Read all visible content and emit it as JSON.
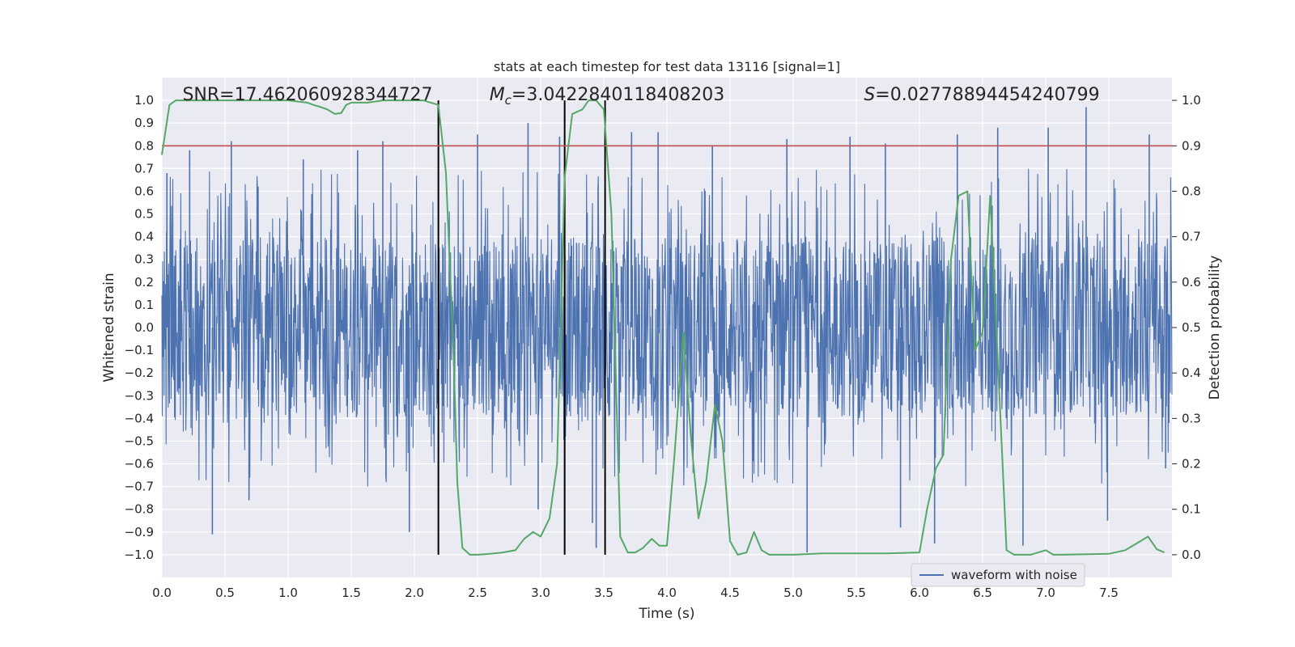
{
  "chart_data": {
    "type": "line",
    "title": "stats at each timestep for test data 13116 [signal=1]",
    "xlabel": "Time (s)",
    "ylabel": "Whitened strain",
    "y2label": "Detection probability",
    "xlim": [
      0,
      8
    ],
    "ylim": [
      -1.1,
      1.1
    ],
    "y2lim": [
      -0.05,
      1.05
    ],
    "x_ticks": [
      0.0,
      0.5,
      1.0,
      1.5,
      2.0,
      2.5,
      3.0,
      3.5,
      4.0,
      4.5,
      5.0,
      5.5,
      6.0,
      6.5,
      7.0,
      7.5
    ],
    "x_tick_labels": [
      "0.0",
      "0.5",
      "1.0",
      "1.5",
      "2.0",
      "2.5",
      "3.0",
      "3.5",
      "4.0",
      "4.5",
      "5.0",
      "5.5",
      "6.0",
      "6.5",
      "7.0",
      "7.5"
    ],
    "y_ticks": [
      1.0,
      0.9,
      0.8,
      0.7,
      0.6,
      0.5,
      0.4,
      0.3,
      0.2,
      0.1,
      0.0,
      -0.1,
      -0.2,
      -0.3,
      -0.4,
      -0.5,
      -0.6,
      -0.7,
      -0.8,
      -0.9,
      -1.0
    ],
    "y_tick_labels": [
      "1.0",
      "0.9",
      "0.8",
      "0.7",
      "0.6",
      "0.5",
      "0.4",
      "0.3",
      "0.2",
      "0.1",
      "0.0",
      "−0.1",
      "−0.2",
      "−0.3",
      "−0.4",
      "−0.5",
      "−0.6",
      "−0.7",
      "−0.8",
      "−0.9",
      "−1.0"
    ],
    "y2_ticks": [
      1.0,
      0.9,
      0.8,
      0.7,
      0.6,
      0.5,
      0.4,
      0.3,
      0.2,
      0.1,
      0.0
    ],
    "y2_tick_labels": [
      "1.0",
      "0.9",
      "0.8",
      "0.7",
      "0.6",
      "0.5",
      "0.4",
      "0.3",
      "0.2",
      "0.1",
      "0.0"
    ],
    "grid": true,
    "annotations": [
      {
        "text": "SNR=17.462060928344727",
        "x": 1.1
      },
      {
        "mc_prefix": "M",
        "mc_sub": "c",
        "mc_rest": "=3.0422840118408203",
        "x": 3.0
      },
      {
        "s_prefix": "S",
        "s_rest": "=0.02778894454240799",
        "x": 6.4
      }
    ],
    "threshold_line": {
      "y2": 0.9,
      "color": "#c44e52"
    },
    "vertical_lines": [
      2.19,
      3.19,
      3.51
    ],
    "series": [
      {
        "name": "waveform with noise",
        "color": "#4c72b0",
        "axis": "left",
        "description": "whitened strain time series, dense noise",
        "bulk_amplitude": 0.4,
        "peaks": [
          {
            "x": 0.04,
            "y": 0.68
          },
          {
            "x": 0.22,
            "y": 0.78
          },
          {
            "x": 0.55,
            "y": 0.82
          },
          {
            "x": 1.12,
            "y": 0.74
          },
          {
            "x": 1.55,
            "y": 0.78
          },
          {
            "x": 1.75,
            "y": 0.82
          },
          {
            "x": 2.5,
            "y": 0.85
          },
          {
            "x": 2.9,
            "y": 0.9
          },
          {
            "x": 3.15,
            "y": 0.84
          },
          {
            "x": 3.72,
            "y": 0.86
          },
          {
            "x": 3.93,
            "y": 0.86
          },
          {
            "x": 4.36,
            "y": 0.8
          },
          {
            "x": 4.95,
            "y": 0.83
          },
          {
            "x": 5.45,
            "y": 0.84
          },
          {
            "x": 5.73,
            "y": 0.81
          },
          {
            "x": 6.3,
            "y": 0.85
          },
          {
            "x": 6.62,
            "y": 0.88
          },
          {
            "x": 7.02,
            "y": 0.88
          },
          {
            "x": 7.32,
            "y": 0.97
          },
          {
            "x": 7.82,
            "y": 0.85
          },
          {
            "x": 0.4,
            "y": -0.91
          },
          {
            "x": 0.69,
            "y": -0.76
          },
          {
            "x": 1.96,
            "y": -0.9
          },
          {
            "x": 2.98,
            "y": -0.8
          },
          {
            "x": 3.41,
            "y": -0.86
          },
          {
            "x": 3.44,
            "y": -0.97
          },
          {
            "x": 5.11,
            "y": -0.99
          },
          {
            "x": 5.85,
            "y": -0.88
          },
          {
            "x": 6.12,
            "y": -0.95
          },
          {
            "x": 6.82,
            "y": -0.96
          },
          {
            "x": 7.49,
            "y": -0.85
          },
          {
            "x": 7.95,
            "y": -0.62
          }
        ]
      },
      {
        "name": "detection probability",
        "color": "#55a868",
        "axis": "right",
        "x": [
          0.0,
          0.06,
          0.11,
          0.25,
          0.5,
          0.75,
          1.0,
          1.15,
          1.2,
          1.26,
          1.31,
          1.37,
          1.42,
          1.46,
          1.5,
          1.63,
          1.75,
          1.88,
          2.0,
          2.07,
          2.13,
          2.19,
          2.25,
          2.31,
          2.34,
          2.38,
          2.44,
          2.5,
          2.6,
          2.7,
          2.8,
          2.87,
          2.94,
          3.0,
          3.07,
          3.13,
          3.19,
          3.25,
          3.33,
          3.38,
          3.44,
          3.5,
          3.56,
          3.63,
          3.69,
          3.75,
          3.81,
          3.88,
          3.94,
          4.0,
          4.06,
          4.13,
          4.19,
          4.25,
          4.31,
          4.38,
          4.44,
          4.5,
          4.56,
          4.63,
          4.69,
          4.75,
          4.81,
          5.0,
          5.25,
          5.5,
          5.75,
          6.0,
          6.06,
          6.13,
          6.19,
          6.25,
          6.31,
          6.38,
          6.44,
          6.5,
          6.56,
          6.63,
          6.69,
          6.75,
          6.81,
          6.88,
          7.0,
          7.06,
          7.13,
          7.5,
          7.63,
          7.75,
          7.81,
          7.88,
          7.94
        ],
        "y": [
          0.88,
          0.99,
          1.0,
          1.0,
          1.0,
          1.0,
          1.0,
          0.995,
          0.99,
          0.985,
          0.98,
          0.97,
          0.972,
          0.99,
          0.995,
          0.995,
          1.0,
          1.0,
          1.0,
          1.0,
          0.995,
          0.99,
          0.84,
          0.44,
          0.16,
          0.015,
          0.0,
          0.0,
          0.002,
          0.005,
          0.01,
          0.035,
          0.05,
          0.04,
          0.08,
          0.2,
          0.83,
          0.97,
          0.98,
          1.0,
          1.0,
          0.98,
          0.75,
          0.04,
          0.005,
          0.005,
          0.015,
          0.035,
          0.02,
          0.02,
          0.22,
          0.49,
          0.26,
          0.08,
          0.16,
          0.33,
          0.25,
          0.03,
          0.0,
          0.005,
          0.05,
          0.01,
          0.0,
          0.0,
          0.003,
          0.003,
          0.003,
          0.005,
          0.1,
          0.19,
          0.22,
          0.65,
          0.79,
          0.8,
          0.45,
          0.49,
          0.79,
          0.37,
          0.01,
          0.0,
          0.0,
          0.0,
          0.01,
          0.0,
          0.0,
          0.002,
          0.01,
          0.03,
          0.04,
          0.012,
          0.005
        ]
      }
    ],
    "legend": {
      "position": "bottom-right",
      "entries": [
        "waveform with noise"
      ]
    }
  }
}
